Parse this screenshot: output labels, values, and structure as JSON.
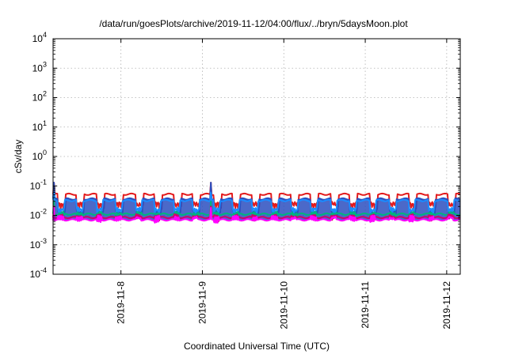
{
  "chart_data": {
    "type": "line",
    "title": "/data/run/goesPlots/archive/2019-11-12/04:00/flux/../bryn/5daysMoon.plot",
    "xlabel": "Coordinated Universal Time (UTC)",
    "ylabel": "cSv/day",
    "y_scale": "log",
    "ylim": [
      0.0001,
      10000
    ],
    "y_ticks": [
      {
        "value": 0.0001,
        "base": "10",
        "exp": "-4"
      },
      {
        "value": 0.001,
        "base": "10",
        "exp": "-3"
      },
      {
        "value": 0.01,
        "base": "10",
        "exp": "-2"
      },
      {
        "value": 0.1,
        "base": "10",
        "exp": "-1"
      },
      {
        "value": 1,
        "base": "10",
        "exp": "0"
      },
      {
        "value": 10,
        "base": "10",
        "exp": "1"
      },
      {
        "value": 100,
        "base": "10",
        "exp": "2"
      },
      {
        "value": 1000,
        "base": "10",
        "exp": "3"
      },
      {
        "value": 10000,
        "base": "10",
        "exp": "4"
      }
    ],
    "xlim": [
      "2019-11-07T04:00",
      "2019-11-12T04:00"
    ],
    "x_ticks": [
      {
        "value": "2019-11-08T00:00",
        "label": "2019-11-8"
      },
      {
        "value": "2019-11-09T00:00",
        "label": "2019-11-9"
      },
      {
        "value": "2019-11-10T00:00",
        "label": "2019-11-10"
      },
      {
        "value": "2019-11-11T00:00",
        "label": "2019-11-11"
      },
      {
        "value": "2019-11-12T00:00",
        "label": "2019-11-12"
      }
    ],
    "grid": true,
    "series": [
      {
        "color": "#e31a1c",
        "high": 0.052,
        "low": 0.017,
        "drop_width_hours": 2.2,
        "peak_value": 0.13
      },
      {
        "color": "#2b4fbf",
        "high": 0.036,
        "low": 0.009,
        "drop_width_hours": 2.0,
        "peak_value": 0.13,
        "fill": true
      },
      {
        "color": "#1a8cff",
        "high": 0.032,
        "low": 0.011,
        "drop_width_hours": 1.8,
        "peak_value": 0.06
      },
      {
        "color": "#00b37d",
        "high": 0.011,
        "low": 0.008,
        "drop_width_hours": 1.8,
        "peak_value": 0.03
      },
      {
        "color": "#d4006a",
        "high": 0.0085,
        "low": 0.0065,
        "drop_width_hours": 1.6,
        "peak_value": 0.02
      },
      {
        "color": "#ff00ff",
        "high": 0.007,
        "low": 0.0058,
        "drop_width_hours": 1.5,
        "peak_value": 0.018
      }
    ],
    "activity_windows_hours_from_start": [
      [
        1.5,
        3.2
      ],
      [
        7.0,
        8.6
      ],
      [
        12.8,
        14.2
      ],
      [
        18.5,
        20.3
      ],
      [
        24.4,
        25.9
      ],
      [
        29.8,
        31.4
      ],
      [
        35.6,
        37.0
      ],
      [
        41.2,
        43.0
      ],
      [
        47.3,
        48.8
      ],
      [
        53.0,
        54.4
      ],
      [
        58.6,
        60.3
      ],
      [
        64.5,
        66.1
      ],
      [
        70.2,
        71.6
      ],
      [
        76.0,
        77.8
      ],
      [
        81.9,
        83.4
      ],
      [
        87.5,
        89.0
      ],
      [
        93.3,
        95.0
      ],
      [
        99.2,
        100.6
      ],
      [
        104.8,
        106.5
      ],
      [
        110.6,
        112.1
      ],
      [
        116.4,
        117.9
      ]
    ]
  }
}
